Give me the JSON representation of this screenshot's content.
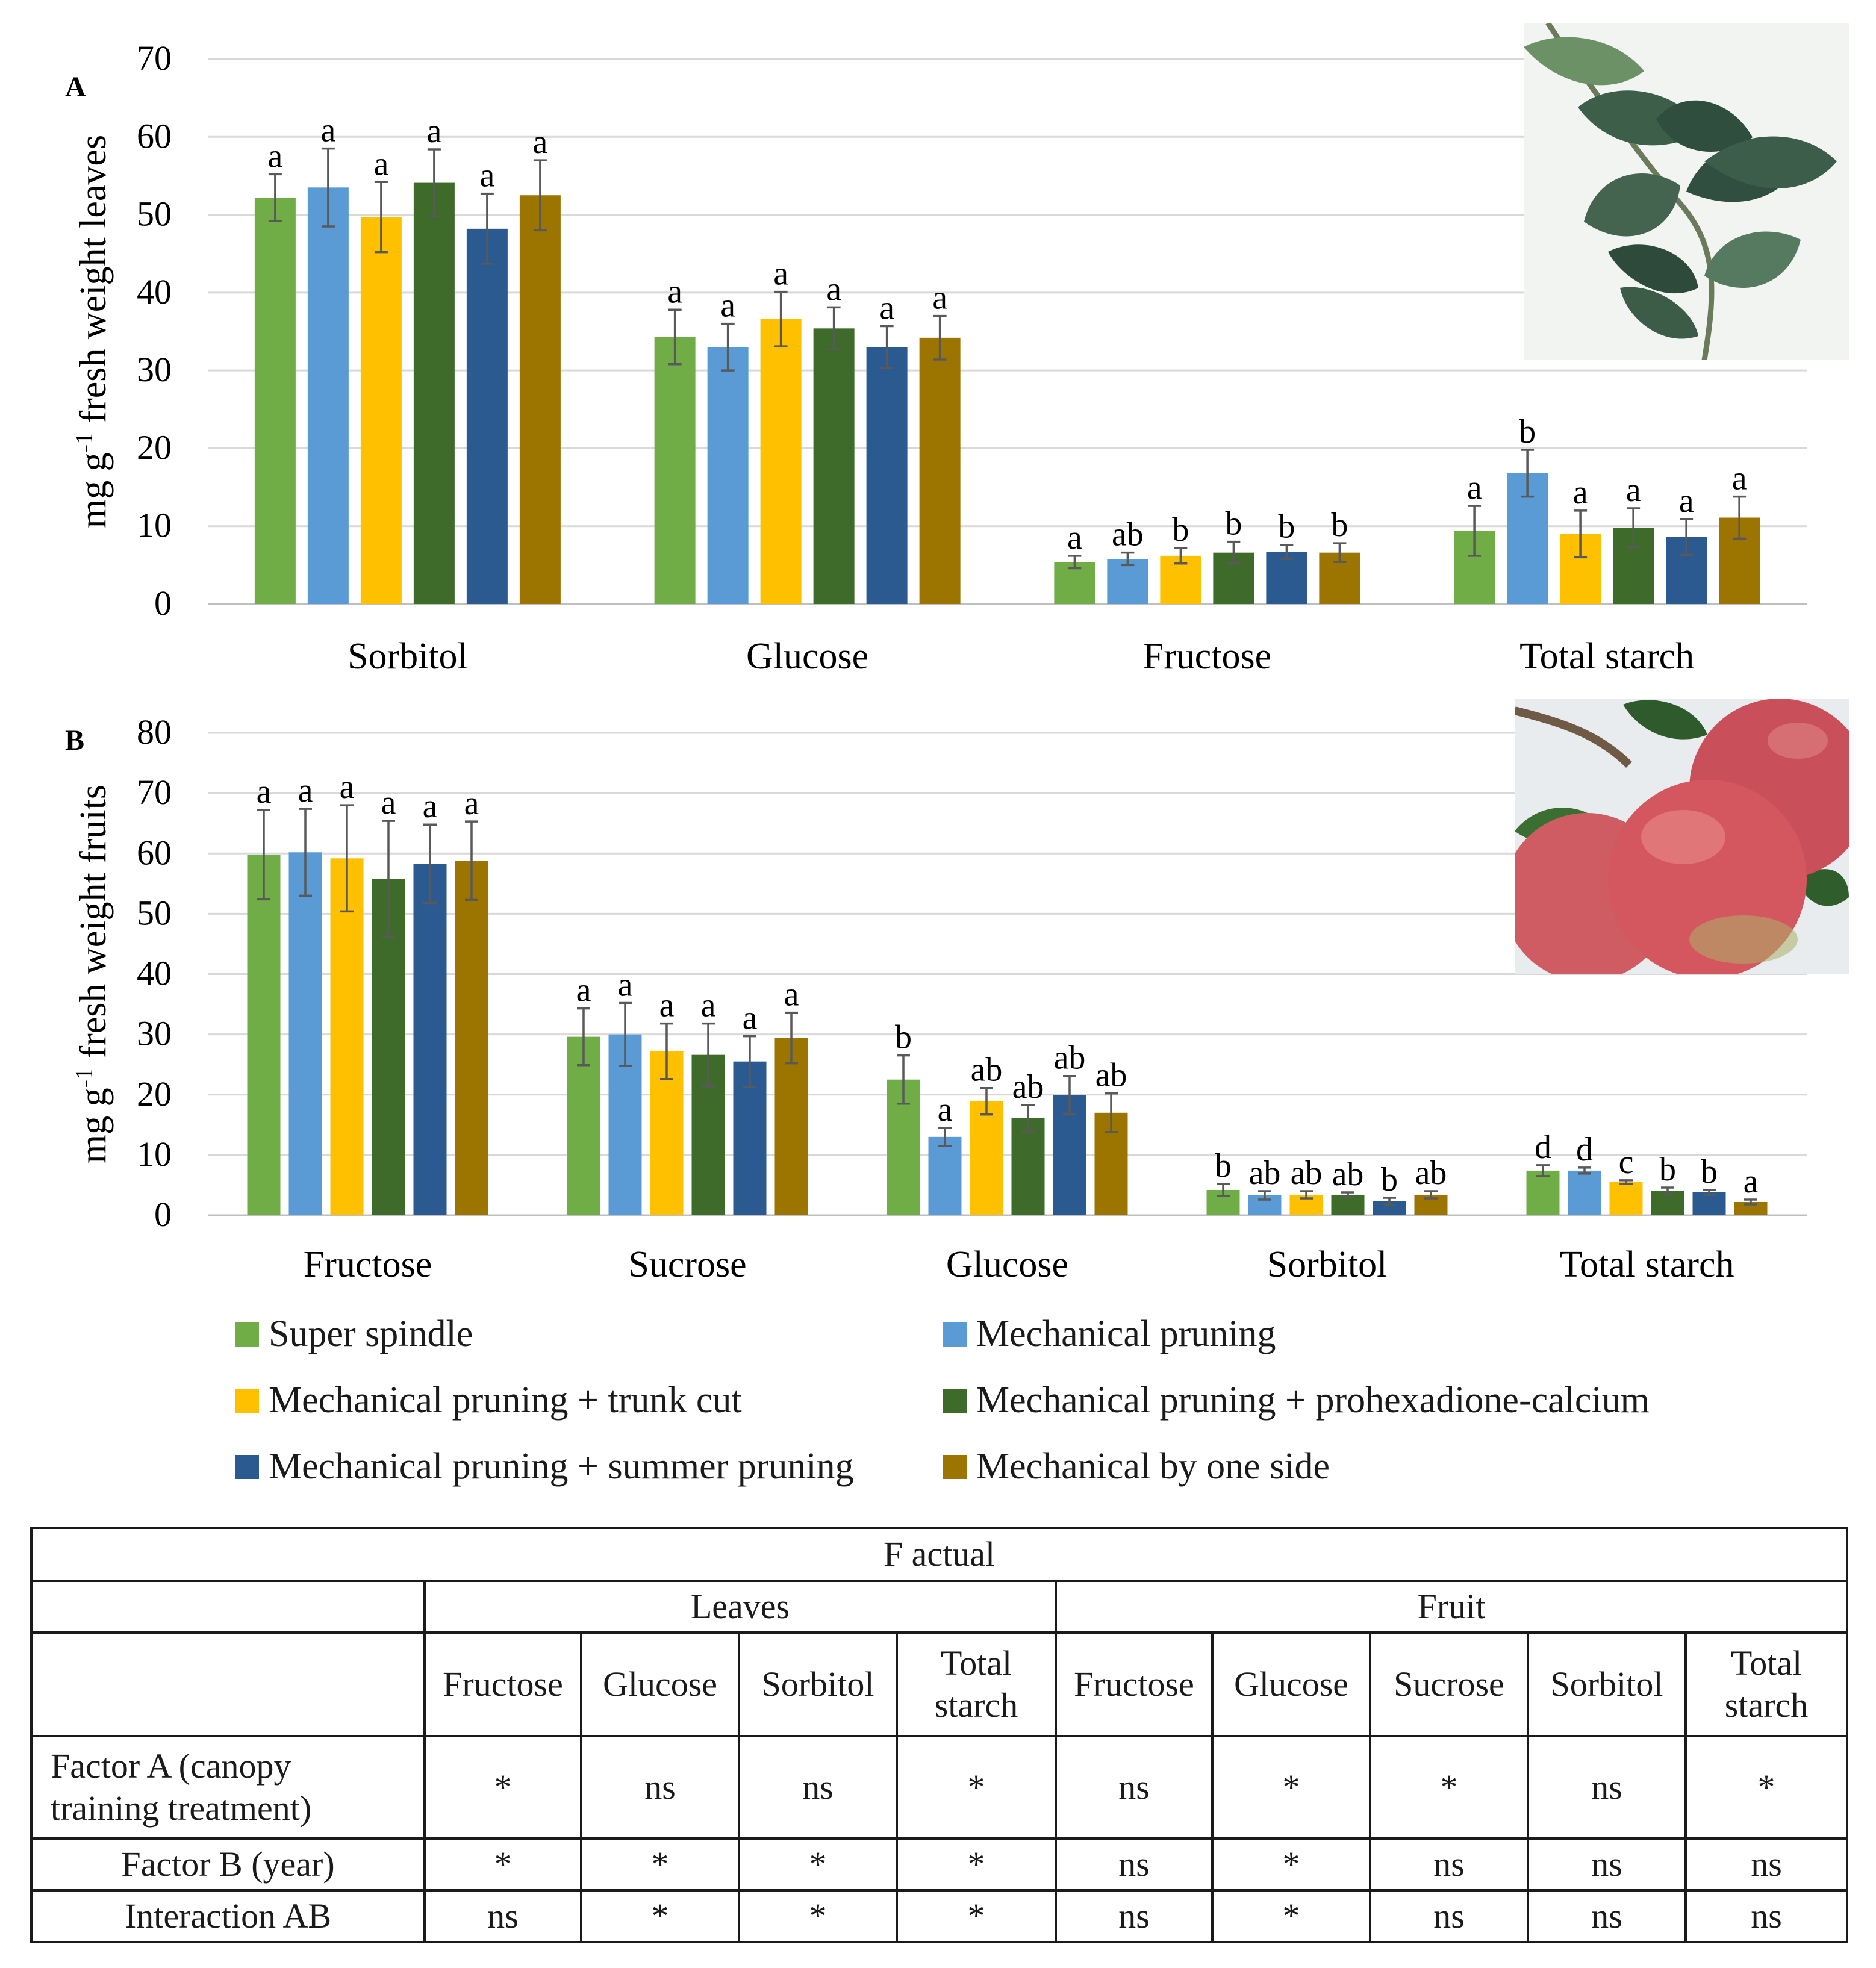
{
  "series_colors": [
    "#70ad47",
    "#5b9bd5",
    "#ffc000",
    "#3e6b2a",
    "#2a5a8f",
    "#9c7400"
  ],
  "legend": [
    {
      "label": "Super spindle",
      "color": "#70ad47"
    },
    {
      "label": "Mechanical pruning",
      "color": "#5b9bd5"
    },
    {
      "label": "Mechanical pruning + trunk cut",
      "color": "#ffc000"
    },
    {
      "label": "Mechanical pruning + prohexadione-calcium",
      "color": "#3e6b2a"
    },
    {
      "label": "Mechanical pruning + summer pruning",
      "color": "#2a5a8f"
    },
    {
      "label": "Mechanical by one side",
      "color": "#9c7400"
    }
  ],
  "images": {
    "leaves": "apple leaves photo",
    "apples": "apples photo"
  },
  "chart_data": [
    {
      "panel": "A",
      "type": "bar",
      "ylabel_pre": "mg g",
      "ylabel_sup": "-1",
      "ylabel_post": " fresh weight leaves",
      "ylim": [
        0,
        70
      ],
      "yticks": [
        0,
        10,
        20,
        30,
        40,
        50,
        60,
        70
      ],
      "grid": true,
      "categories": [
        "Sorbitol",
        "Glucose",
        "Fructose",
        "Total starch"
      ],
      "series": [
        {
          "name": "Super spindle",
          "values": [
            52.2,
            34.3,
            5.4,
            9.4
          ],
          "errors": [
            3.0,
            3.5,
            0.8,
            3.2
          ],
          "letters": [
            "a",
            "a",
            "a",
            "a"
          ]
        },
        {
          "name": "Mechanical pruning",
          "values": [
            53.5,
            33.0,
            5.8,
            16.8
          ],
          "errors": [
            5.0,
            3.0,
            0.8,
            3.0
          ],
          "letters": [
            "a",
            "a",
            "ab",
            "b"
          ]
        },
        {
          "name": "Mechanical pruning + trunk cut",
          "values": [
            49.7,
            36.6,
            6.2,
            9.0
          ],
          "errors": [
            4.5,
            3.5,
            1.0,
            3.0
          ],
          "letters": [
            "a",
            "a",
            "b",
            "a"
          ]
        },
        {
          "name": "Mechanical pruning + prohexadione-calcium",
          "values": [
            54.1,
            35.4,
            6.6,
            9.8
          ],
          "errors": [
            4.3,
            2.7,
            1.4,
            2.5
          ],
          "letters": [
            "a",
            "a",
            "b",
            "a"
          ]
        },
        {
          "name": "Mechanical pruning + summer pruning",
          "values": [
            48.2,
            33.0,
            6.7,
            8.6
          ],
          "errors": [
            4.5,
            2.7,
            0.9,
            2.3
          ],
          "letters": [
            "a",
            "a",
            "b",
            "a"
          ]
        },
        {
          "name": "Mechanical by one side",
          "values": [
            52.5,
            34.2,
            6.6,
            11.1
          ],
          "errors": [
            4.5,
            2.8,
            1.2,
            2.7
          ],
          "letters": [
            "a",
            "a",
            "b",
            "a"
          ]
        }
      ]
    },
    {
      "panel": "B",
      "type": "bar",
      "ylabel_pre": "mg g",
      "ylabel_sup": "-1",
      "ylabel_post": " fresh weight fruits",
      "ylim": [
        0,
        80
      ],
      "yticks": [
        0,
        10,
        20,
        30,
        40,
        50,
        60,
        70,
        80
      ],
      "grid": true,
      "categories": [
        "Fructose",
        "Sucrose",
        "Glucose",
        "Sorbitol",
        "Total starch"
      ],
      "series": [
        {
          "name": "Super spindle",
          "values": [
            59.8,
            29.6,
            22.5,
            4.2,
            7.4
          ],
          "errors": [
            7.4,
            4.7,
            4.0,
            1.0,
            0.9
          ],
          "letters": [
            "a",
            "a",
            "b",
            "b",
            "d"
          ]
        },
        {
          "name": "Mechanical pruning",
          "values": [
            60.2,
            30.0,
            13.0,
            3.3,
            7.4
          ],
          "errors": [
            7.2,
            5.2,
            1.5,
            0.7,
            0.5
          ],
          "letters": [
            "a",
            "a",
            "a",
            "ab",
            "d"
          ]
        },
        {
          "name": "Mechanical pruning + trunk cut",
          "values": [
            59.2,
            27.2,
            18.9,
            3.4,
            5.5
          ],
          "errors": [
            8.8,
            4.6,
            2.2,
            0.6,
            0.3
          ],
          "letters": [
            "a",
            "a",
            "ab",
            "ab",
            "c"
          ]
        },
        {
          "name": "Mechanical pruning + prohexadione-calcium",
          "values": [
            55.8,
            26.6,
            16.1,
            3.4,
            4.0
          ],
          "errors": [
            9.6,
            5.2,
            2.2,
            0.4,
            0.6
          ],
          "letters": [
            "a",
            "a",
            "ab",
            "ab",
            "b"
          ]
        },
        {
          "name": "Mechanical pruning + summer pruning",
          "values": [
            58.3,
            25.5,
            19.9,
            2.3,
            3.8
          ],
          "errors": [
            6.5,
            4.2,
            3.2,
            0.6,
            0.4
          ],
          "letters": [
            "a",
            "a",
            "ab",
            "b",
            "b"
          ]
        },
        {
          "name": "Mechanical by one side",
          "values": [
            58.8,
            29.4,
            17.0,
            3.4,
            2.2
          ],
          "errors": [
            6.5,
            4.2,
            3.2,
            0.6,
            0.4
          ],
          "letters": [
            "a",
            "a",
            "ab",
            "ab",
            "a"
          ]
        }
      ]
    }
  ],
  "table": {
    "title": "F actual",
    "group_leaves": "Leaves",
    "group_fruit": "Fruit",
    "leaf_columns": [
      "Fructose",
      "Glucose",
      "Sorbitol",
      "Total starch"
    ],
    "fruit_columns": [
      "Fructose",
      "Glucose",
      "Sucrose",
      "Sorbitol",
      "Total starch"
    ],
    "rows": [
      {
        "label": "Factor A (canopy training treatment)",
        "leaves": [
          "*",
          "ns",
          "ns",
          "*"
        ],
        "fruit": [
          "ns",
          "*",
          "*",
          "ns",
          "*"
        ]
      },
      {
        "label": "Factor B (year)",
        "leaves": [
          "*",
          "*",
          "*",
          "*"
        ],
        "fruit": [
          "ns",
          "*",
          "ns",
          "ns",
          "ns"
        ]
      },
      {
        "label": "Interaction AB",
        "leaves": [
          "ns",
          "*",
          "*",
          "*"
        ],
        "fruit": [
          "ns",
          "*",
          "ns",
          "ns",
          "ns"
        ]
      }
    ]
  }
}
